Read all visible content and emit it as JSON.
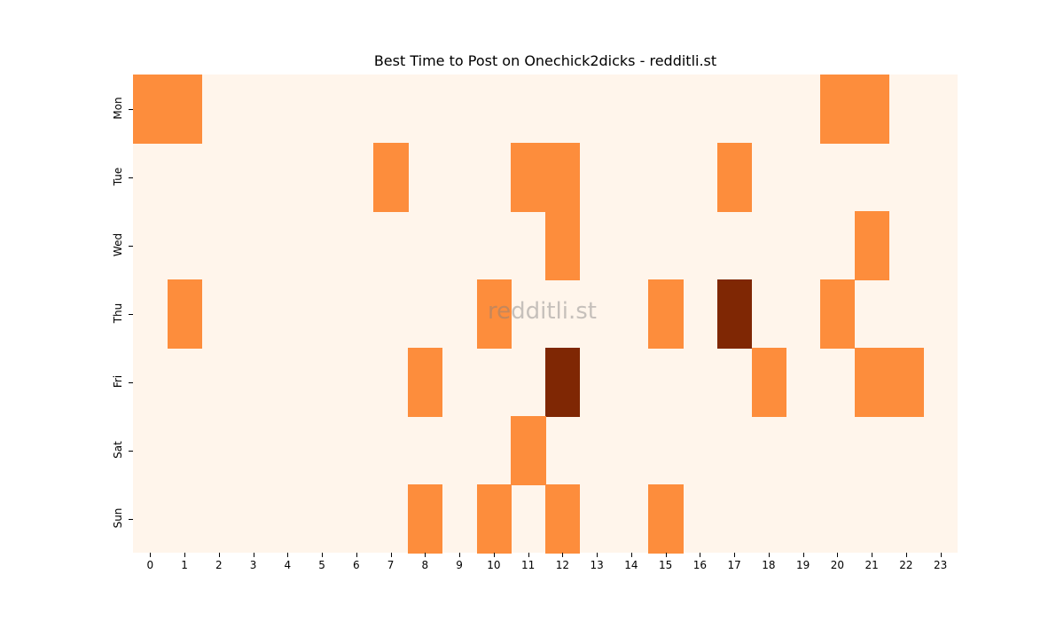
{
  "chart_data": {
    "type": "heatmap",
    "title": "Best Time to Post on Onechick2dicks - redditli.st",
    "xlabel": "",
    "ylabel": "",
    "x": [
      "0",
      "1",
      "2",
      "3",
      "4",
      "5",
      "6",
      "7",
      "8",
      "9",
      "10",
      "11",
      "12",
      "13",
      "14",
      "15",
      "16",
      "17",
      "18",
      "19",
      "20",
      "21",
      "22",
      "23"
    ],
    "y": [
      "Mon",
      "Tue",
      "Wed",
      "Thu",
      "Fri",
      "Sat",
      "Sun"
    ],
    "values": [
      [
        1,
        1,
        0,
        0,
        0,
        0,
        0,
        0,
        0,
        0,
        0,
        0,
        0,
        0,
        0,
        0,
        0,
        0,
        0,
        0,
        1,
        1,
        0,
        0
      ],
      [
        0,
        0,
        0,
        0,
        0,
        0,
        0,
        1,
        0,
        0,
        0,
        1,
        1,
        0,
        0,
        0,
        0,
        1,
        0,
        0,
        0,
        0,
        0,
        0
      ],
      [
        0,
        0,
        0,
        0,
        0,
        0,
        0,
        0,
        0,
        0,
        0,
        0,
        1,
        0,
        0,
        0,
        0,
        0,
        0,
        0,
        0,
        1,
        0,
        0
      ],
      [
        0,
        1,
        0,
        0,
        0,
        0,
        0,
        0,
        0,
        0,
        1,
        0,
        0,
        0,
        0,
        1,
        0,
        2,
        0,
        0,
        1,
        0,
        0,
        0
      ],
      [
        0,
        0,
        0,
        0,
        0,
        0,
        0,
        0,
        1,
        0,
        0,
        0,
        2,
        0,
        0,
        0,
        0,
        0,
        1,
        0,
        0,
        1,
        1,
        0
      ],
      [
        0,
        0,
        0,
        0,
        0,
        0,
        0,
        0,
        0,
        0,
        0,
        1,
        0,
        0,
        0,
        0,
        0,
        0,
        0,
        0,
        0,
        0,
        0,
        0
      ],
      [
        0,
        0,
        0,
        0,
        0,
        0,
        0,
        0,
        1,
        0,
        1,
        0,
        1,
        0,
        0,
        1,
        0,
        0,
        0,
        0,
        0,
        0,
        0,
        0
      ]
    ],
    "colormap": "Oranges",
    "color_scale": {
      "0": "#fff5eb",
      "1": "#fd8d3c",
      "2": "#7f2704"
    },
    "colorbar": false,
    "watermark": "redditli.st"
  }
}
